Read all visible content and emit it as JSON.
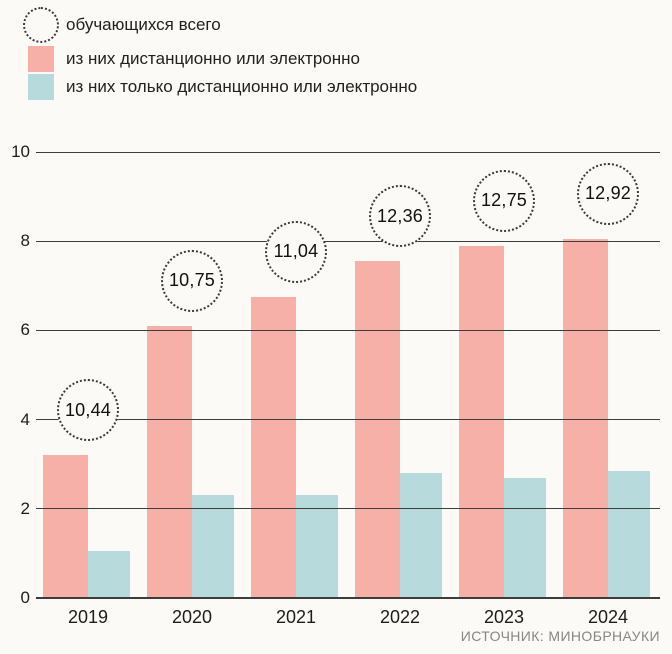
{
  "legend": {
    "items": [
      {
        "label": "обучающихся всего",
        "icon": "dotted-circle"
      },
      {
        "label": "из них дистанционно или электронно",
        "icon": "pink-swatch"
      },
      {
        "label": "из них только дистанционно или электронно",
        "icon": "blue-swatch"
      }
    ]
  },
  "source": "ИСТОЧНИК: МИНОБРНАУКИ",
  "chart_data": {
    "type": "bar",
    "title": "",
    "categories": [
      "2019",
      "2020",
      "2021",
      "2022",
      "2023",
      "2024"
    ],
    "series": [
      {
        "name": "из них дистанционно или электронно",
        "color": "#f6b0a8",
        "values": [
          3.2,
          6.1,
          6.75,
          7.55,
          7.9,
          8.05
        ]
      },
      {
        "name": "из них только дистанционно или электронно",
        "color": "#b7dadd",
        "values": [
          1.05,
          2.3,
          2.3,
          2.8,
          2.7,
          2.85
        ]
      }
    ],
    "annotations": {
      "name": "обучающихся всего",
      "values": [
        "10,44",
        "10,75",
        "11,04",
        "12,36",
        "12,75",
        "12,92"
      ]
    },
    "ylim": [
      0,
      10
    ],
    "yticks": [
      0,
      2,
      4,
      6,
      8,
      10
    ],
    "grid": true,
    "legend_position": "top-left",
    "colors": {
      "grid": "#3d3d3b",
      "text": "#1d1d1b",
      "source_text": "#878785",
      "background": "#fbfaf7"
    }
  }
}
